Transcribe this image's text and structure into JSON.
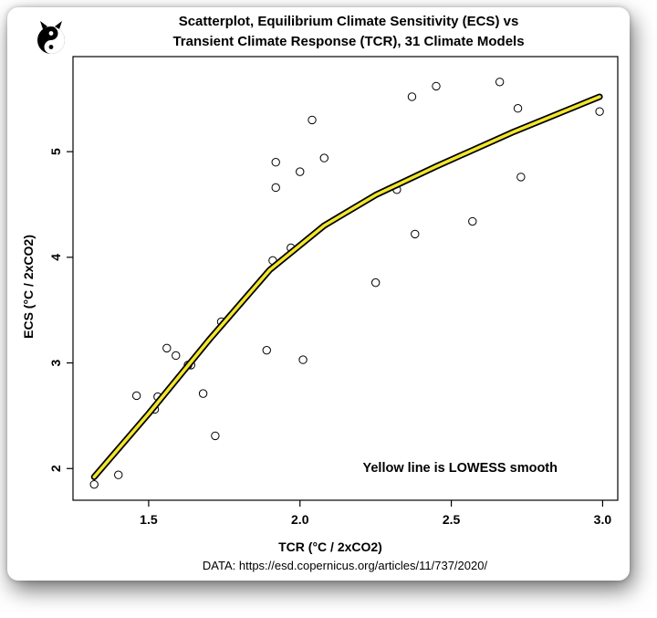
{
  "chart_data": {
    "type": "scatter",
    "title": "Scatterplot, Equilibrium Climate Sensitivity (ECS) vs",
    "subtitle": "Transient Climate Response (TCR), 31 Climate Models",
    "xlabel": "TCR (°C / 2xCO2)",
    "ylabel": "ECS (°C / 2xCO2)",
    "xlim": [
      1.25,
      3.05
    ],
    "ylim": [
      1.7,
      5.9
    ],
    "xticks": [
      1.5,
      2.0,
      2.5,
      3.0
    ],
    "xtick_labels": [
      "1.5",
      "2.0",
      "2.5",
      "3.0"
    ],
    "yticks": [
      2,
      3,
      4,
      5
    ],
    "ytick_labels": [
      "2",
      "3",
      "4",
      "5"
    ],
    "points": {
      "x": [
        1.32,
        1.4,
        1.46,
        1.52,
        1.53,
        1.56,
        1.59,
        1.64,
        1.68,
        1.72,
        1.74,
        1.89,
        1.91,
        1.92,
        1.92,
        1.97,
        2.0,
        2.01,
        2.04,
        2.08,
        2.25,
        2.32,
        2.37,
        2.38,
        2.45,
        2.57,
        2.66,
        2.72,
        2.73,
        2.99,
        1.63
      ],
      "y": [
        1.85,
        1.94,
        2.69,
        2.56,
        2.68,
        3.14,
        3.07,
        2.98,
        2.71,
        2.31,
        3.39,
        3.12,
        3.97,
        4.9,
        4.66,
        4.09,
        4.81,
        3.03,
        5.3,
        4.94,
        3.76,
        4.64,
        5.52,
        4.22,
        5.62,
        4.34,
        5.66,
        5.41,
        4.76,
        5.38,
        2.98
      ]
    },
    "lowess": {
      "name": "LOWESS smooth",
      "color": "#f2e62c",
      "x": [
        1.32,
        1.5,
        1.7,
        1.9,
        2.08,
        2.25,
        2.45,
        2.7,
        2.99
      ],
      "y": [
        1.92,
        2.52,
        3.22,
        3.88,
        4.3,
        4.59,
        4.86,
        5.18,
        5.52
      ]
    },
    "annotation": "Yellow line is LOWESS smooth",
    "source": "DATA: https://esd.copernicus.org/articles/11/737/2020/"
  }
}
